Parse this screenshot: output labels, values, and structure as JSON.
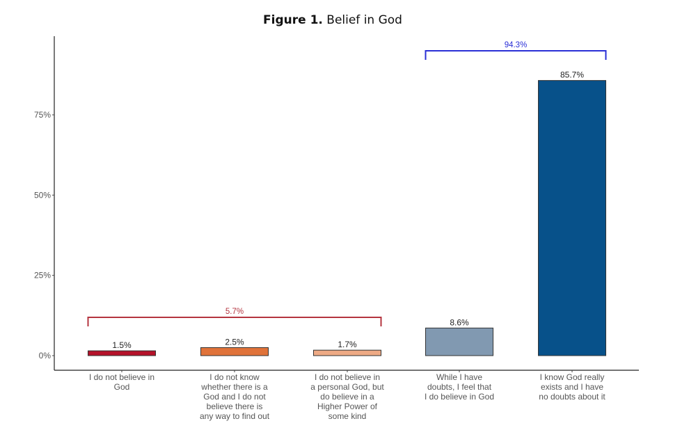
{
  "chart_data": {
    "type": "bar",
    "title_prefix": "Figure 1.",
    "title": "Belief in God",
    "xlabel": "",
    "ylabel": "",
    "ylim": [
      0,
      100
    ],
    "yticks": [
      0,
      25,
      50,
      75
    ],
    "ytick_labels": [
      "0%",
      "25%",
      "50%",
      "75%"
    ],
    "grid": false,
    "legend": "none",
    "categories": [
      [
        "I do not believe in",
        "God"
      ],
      [
        "I do not know",
        "whether there is a",
        "God and I do not",
        "believe there is",
        "any way to find out"
      ],
      [
        "I do not believe in",
        "a personal God, but",
        "do believe in a",
        "Higher Power of",
        "some kind"
      ],
      [
        "While I have",
        "doubts, I feel that",
        "I do believe in God"
      ],
      [
        "I know God really",
        "exists and I have",
        "no doubts about it"
      ]
    ],
    "values": [
      1.5,
      2.5,
      1.7,
      8.6,
      85.7
    ],
    "data_labels": [
      "1.5%",
      "2.5%",
      "1.7%",
      "8.6%",
      "85.7%"
    ],
    "colors": [
      "#b5122a",
      "#e0733a",
      "#eeaa85",
      "#8199b1",
      "#07518a"
    ],
    "brackets": [
      {
        "label": "5.7%",
        "from": 0,
        "to": 2,
        "value": 5.7,
        "color": "#b4343f"
      },
      {
        "label": "94.3%",
        "from": 3,
        "to": 4,
        "value": 94.3,
        "color": "#2a2fd6"
      }
    ]
  }
}
